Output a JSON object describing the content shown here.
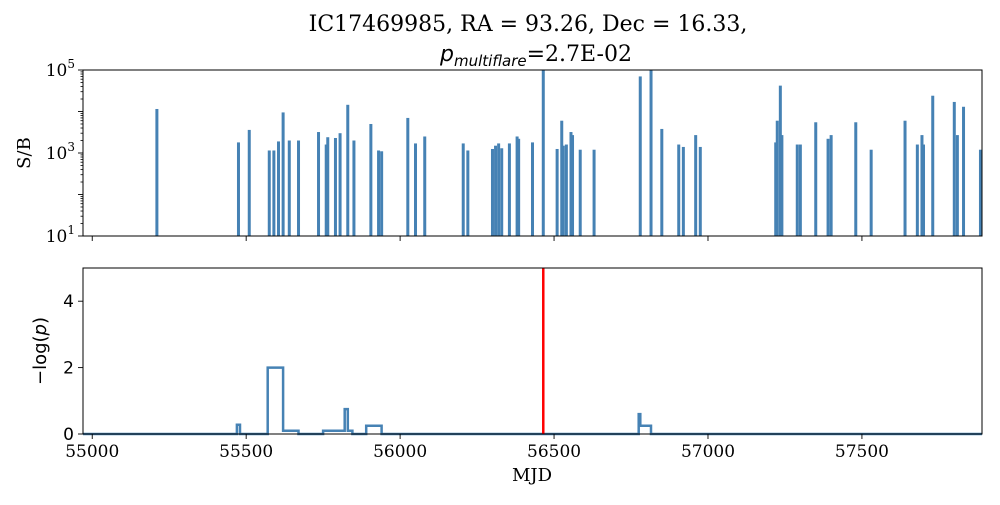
{
  "chart_data": {
    "title_line1": "IC17469985, RA = 93.26, Dec = 16.33,",
    "title_line2_symbol": "p",
    "title_line2_subscript": "multiflare",
    "title_line2_value": "=2.7E-02",
    "xlabel": "MJD",
    "xlim": [
      54970,
      57890
    ],
    "xticks": [
      55000,
      55500,
      56000,
      56500,
      57000,
      57500
    ],
    "xtick_labels": [
      "55000",
      "55500",
      "56000",
      "56500",
      "57000",
      "57500"
    ],
    "colors": {
      "series": "#4682b4",
      "marker": "#ff0000",
      "axis": "#000000"
    },
    "panels": [
      {
        "type": "bar",
        "ylabel": "S/B",
        "yscale": "log",
        "ylim": [
          10,
          100000
        ],
        "yticks": [
          {
            "value": 10,
            "base": "10",
            "exp": "1"
          },
          {
            "value": 1000,
            "base": "10",
            "exp": "3"
          },
          {
            "value": 100000,
            "base": "10",
            "exp": "5"
          }
        ],
        "bars": [
          [
            55210,
            11500
          ],
          [
            55475,
            1800
          ],
          [
            55510,
            3600
          ],
          [
            55575,
            1150
          ],
          [
            55590,
            1150
          ],
          [
            55605,
            1900
          ],
          [
            55620,
            9500
          ],
          [
            55640,
            2000
          ],
          [
            55670,
            2000
          ],
          [
            55735,
            3200
          ],
          [
            55760,
            1600
          ],
          [
            55765,
            2400
          ],
          [
            55790,
            2300
          ],
          [
            55805,
            3000
          ],
          [
            55830,
            14500
          ],
          [
            55850,
            2000
          ],
          [
            55905,
            5000
          ],
          [
            55930,
            1150
          ],
          [
            55940,
            1100
          ],
          [
            56025,
            7000
          ],
          [
            56050,
            1700
          ],
          [
            56080,
            2500
          ],
          [
            56205,
            1700
          ],
          [
            56220,
            1150
          ],
          [
            56300,
            1250
          ],
          [
            56310,
            1500
          ],
          [
            56320,
            1700
          ],
          [
            56330,
            1300
          ],
          [
            56355,
            1700
          ],
          [
            56380,
            2500
          ],
          [
            56385,
            2200
          ],
          [
            56430,
            1800
          ],
          [
            56465,
            100000
          ],
          [
            56510,
            1250
          ],
          [
            56525,
            6000
          ],
          [
            56530,
            1500
          ],
          [
            56540,
            1600
          ],
          [
            56555,
            3200
          ],
          [
            56560,
            2700
          ],
          [
            56585,
            1200
          ],
          [
            56630,
            1200
          ],
          [
            56780,
            70000
          ],
          [
            56815,
            140000
          ],
          [
            56850,
            3800
          ],
          [
            56905,
            1600
          ],
          [
            56920,
            1400
          ],
          [
            56960,
            2700
          ],
          [
            56975,
            1400
          ],
          [
            57220,
            1800
          ],
          [
            57225,
            6000
          ],
          [
            57235,
            42000
          ],
          [
            57240,
            2700
          ],
          [
            57290,
            1600
          ],
          [
            57300,
            1600
          ],
          [
            57350,
            5500
          ],
          [
            57390,
            2200
          ],
          [
            57400,
            2700
          ],
          [
            57480,
            5500
          ],
          [
            57530,
            1200
          ],
          [
            57640,
            6000
          ],
          [
            57680,
            1600
          ],
          [
            57695,
            2700
          ],
          [
            57700,
            1600
          ],
          [
            57730,
            24000
          ],
          [
            57800,
            17000
          ],
          [
            57810,
            2700
          ],
          [
            57830,
            13000
          ],
          [
            57885,
            1200
          ]
        ]
      },
      {
        "type": "step",
        "ylabel_sym": "−log(",
        "ylabel_p": "p",
        "ylabel_close": ")",
        "ylim": [
          0,
          5
        ],
        "yticks": [
          0,
          2,
          4
        ],
        "ytick_labels": [
          "0",
          "2",
          "4"
        ],
        "steps": [
          [
            54970,
            0
          ],
          [
            55470,
            0
          ],
          [
            55470,
            0.28
          ],
          [
            55480,
            0.28
          ],
          [
            55480,
            0
          ],
          [
            55570,
            0
          ],
          [
            55570,
            2
          ],
          [
            55620,
            2
          ],
          [
            55620,
            0.1
          ],
          [
            55670,
            0.1
          ],
          [
            55670,
            0
          ],
          [
            55750,
            0
          ],
          [
            55750,
            0.1
          ],
          [
            55820,
            0.1
          ],
          [
            55820,
            0.75
          ],
          [
            55830,
            0.75
          ],
          [
            55830,
            0.1
          ],
          [
            55845,
            0.1
          ],
          [
            55845,
            0
          ],
          [
            55890,
            0
          ],
          [
            55890,
            0.25
          ],
          [
            55940,
            0.25
          ],
          [
            55940,
            0
          ],
          [
            56775,
            0
          ],
          [
            56775,
            0.6
          ],
          [
            56780,
            0.6
          ],
          [
            56780,
            0.25
          ],
          [
            56815,
            0.25
          ],
          [
            56815,
            0
          ],
          [
            57890,
            0
          ]
        ],
        "vline_x": 56465
      }
    ]
  }
}
